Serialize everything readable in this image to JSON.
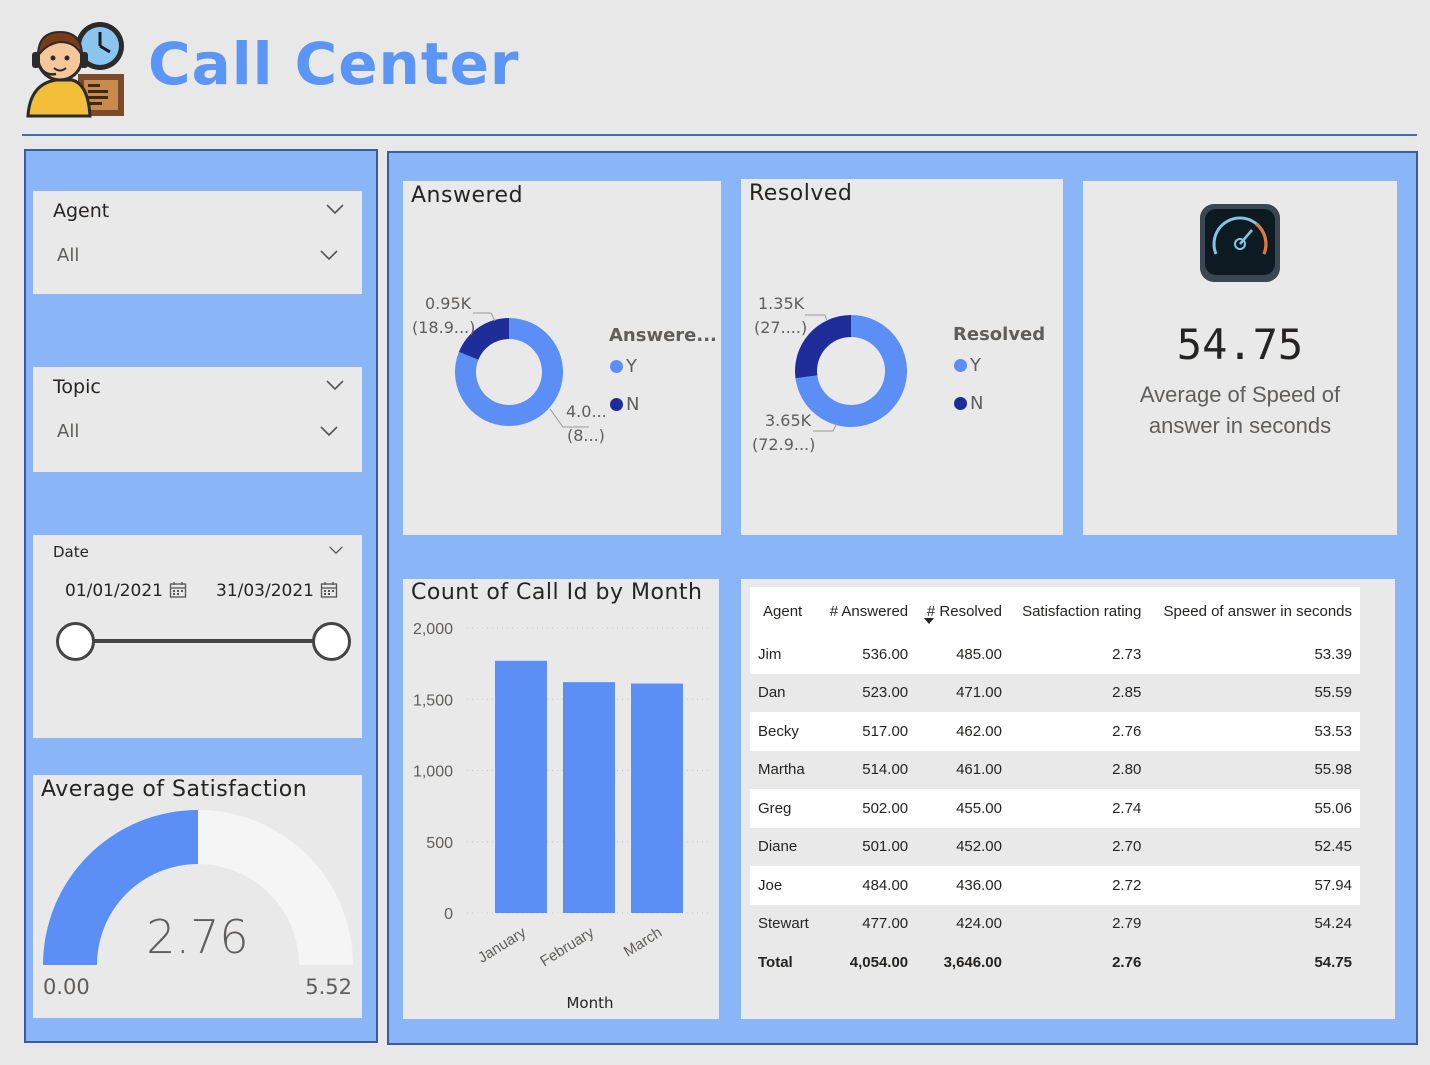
{
  "header": {
    "title": "Call Center",
    "logo": "call-center-agent-icon"
  },
  "slicers": {
    "agent": {
      "title": "Agent",
      "value": "All"
    },
    "topic": {
      "title": "Topic",
      "value": "All"
    },
    "date": {
      "title": "Date",
      "start": "01/01/2021",
      "end": "31/03/2021",
      "range_fraction": [
        0,
        1
      ]
    }
  },
  "satisfaction_gauge": {
    "title": "Average of Satisfaction",
    "value": "2.76",
    "min": "0.00",
    "max": "5.52",
    "fraction": 0.5
  },
  "answered": {
    "title": "Answered",
    "legend_title": "Answere...",
    "legend": [
      "Y",
      "N"
    ],
    "label_n_value": "0.95K",
    "label_n_pct": "(18.9...)",
    "label_y_value": "4.0...",
    "label_y_pct": "(8...)",
    "slices": [
      {
        "name": "Y",
        "value": 4054,
        "color": "#5b8ff5"
      },
      {
        "name": "N",
        "value": 946,
        "color": "#1f2d9b"
      }
    ]
  },
  "resolved": {
    "title": "Resolved",
    "legend_title": "Resolved",
    "legend": [
      "Y",
      "N"
    ],
    "label_n_value": "1.35K",
    "label_n_pct": "(27....)",
    "label_y_value": "3.65K",
    "label_y_pct": "(72.9...)",
    "slices": [
      {
        "name": "Y",
        "value": 3646,
        "color": "#5b8ff5"
      },
      {
        "name": "N",
        "value": 1354,
        "color": "#1f2d9b"
      }
    ]
  },
  "speed_card": {
    "value": "54.75",
    "caption_line1": "Average of Speed of",
    "caption_line2": "answer in seconds",
    "icon": "speedometer-icon"
  },
  "colors": {
    "accent": "#5b95f5",
    "dark": "#1f2d9b",
    "panel": "#8ab6f7"
  },
  "chart_data": {
    "type": "bar",
    "title": "Count of Call Id by Month",
    "xlabel": "Month",
    "ylabel": "",
    "categories": [
      "January",
      "February",
      "March"
    ],
    "values": [
      1770,
      1620,
      1610
    ],
    "yticks": [
      "0",
      "500",
      "1,000",
      "1,500",
      "2,000"
    ],
    "ylim": [
      0,
      2000
    ],
    "color": "#5b8ff5",
    "grid": true
  },
  "table": {
    "columns": [
      "Agent",
      "# Answered",
      "# Resolved",
      "Satisfaction rating",
      "Speed of answer in seconds"
    ],
    "rows": [
      [
        "Jim",
        "536.00",
        "485.00",
        "2.73",
        "53.39"
      ],
      [
        "Dan",
        "523.00",
        "471.00",
        "2.85",
        "55.59"
      ],
      [
        "Becky",
        "517.00",
        "462.00",
        "2.76",
        "53.53"
      ],
      [
        "Martha",
        "514.00",
        "461.00",
        "2.80",
        "55.98"
      ],
      [
        "Greg",
        "502.00",
        "455.00",
        "2.74",
        "55.06"
      ],
      [
        "Diane",
        "501.00",
        "452.00",
        "2.70",
        "52.45"
      ],
      [
        "Joe",
        "484.00",
        "436.00",
        "2.72",
        "57.94"
      ],
      [
        "Stewart",
        "477.00",
        "424.00",
        "2.79",
        "54.24"
      ]
    ],
    "total": [
      "Total",
      "4,054.00",
      "3,646.00",
      "2.76",
      "54.75"
    ]
  }
}
